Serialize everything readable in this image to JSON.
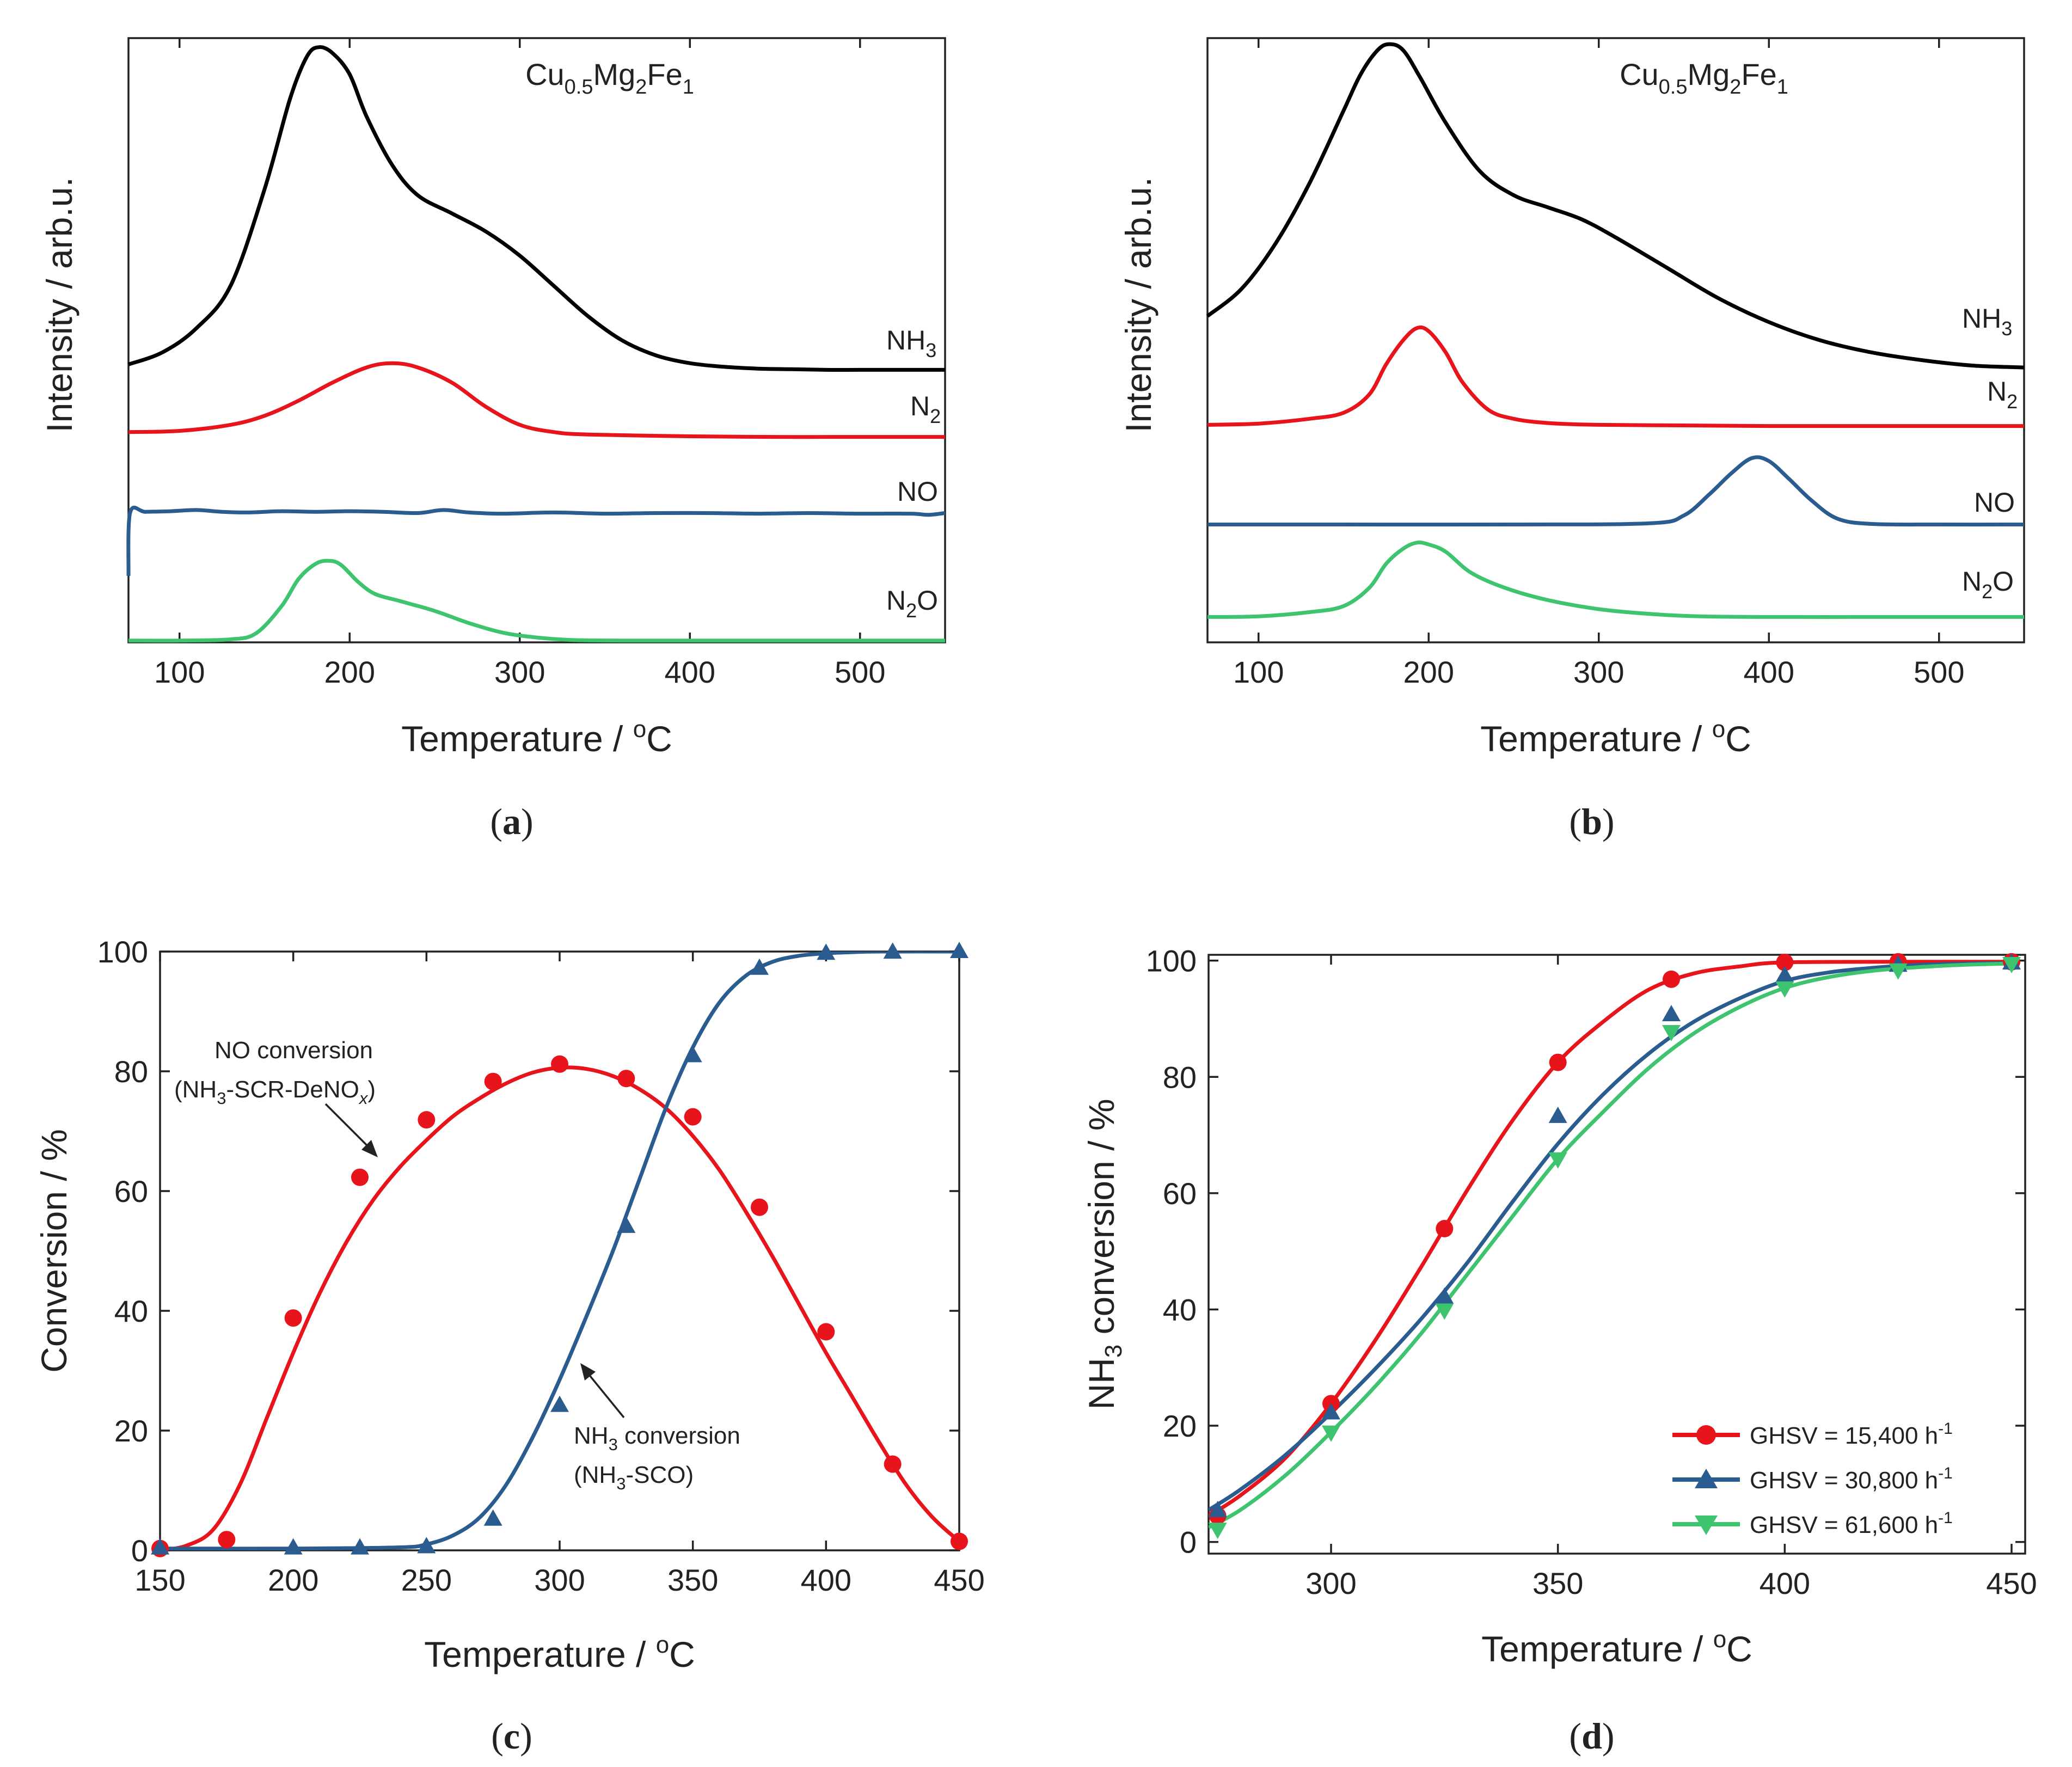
{
  "chart_data": [
    {
      "panel": "a",
      "letter": "a",
      "type": "line",
      "title": "Cu0.5Mg2Fe1",
      "title_parts": {
        "base": "Cu",
        "sub1": "0.5",
        "mid": "Mg",
        "sub2": "2",
        "mid2": "Fe",
        "sub3": "1"
      },
      "xlabel": "Temperature / °C",
      "xlabel_parts": {
        "pre": "Temperature / ",
        "sup": "o",
        "post": "C"
      },
      "ylabel": "Intensity / arb.u.",
      "xlim": [
        70,
        550
      ],
      "ylim": [
        0,
        1
      ],
      "xticks": [
        100,
        200,
        300,
        400,
        500
      ],
      "grid": false,
      "series": [
        {
          "name": "NH3",
          "label_base": "NH",
          "label_sub": "3",
          "color": "#000000",
          "x": [
            70,
            90,
            110,
            130,
            150,
            165,
            175,
            182,
            190,
            200,
            210,
            225,
            240,
            260,
            280,
            300,
            320,
            340,
            360,
            380,
            400,
            420,
            440,
            460,
            480,
            500,
            520,
            550
          ],
          "y": [
            0.46,
            0.48,
            0.52,
            0.59,
            0.75,
            0.9,
            0.97,
            0.985,
            0.975,
            0.94,
            0.87,
            0.79,
            0.74,
            0.71,
            0.68,
            0.64,
            0.59,
            0.54,
            0.5,
            0.475,
            0.462,
            0.456,
            0.453,
            0.452,
            0.451,
            0.451,
            0.451,
            0.451
          ]
        },
        {
          "name": "N2",
          "label_base": "N",
          "label_sub": "2",
          "color": "#e8141b",
          "x": [
            70,
            100,
            130,
            150,
            170,
            190,
            210,
            225,
            240,
            260,
            280,
            300,
            320,
            340,
            400,
            450,
            500,
            550
          ],
          "y": [
            0.348,
            0.35,
            0.36,
            0.375,
            0.4,
            0.43,
            0.455,
            0.462,
            0.455,
            0.43,
            0.39,
            0.36,
            0.348,
            0.344,
            0.341,
            0.34,
            0.34,
            0.34
          ]
        },
        {
          "name": "NO",
          "label_base": "NO",
          "label_sub": "",
          "color": "#2b5c8f",
          "x": [
            70,
            71,
            80,
            95,
            110,
            125,
            140,
            160,
            180,
            200,
            220,
            240,
            255,
            270,
            290,
            320,
            350,
            380,
            410,
            440,
            470,
            500,
            530,
            540,
            550
          ],
          "y": [
            0.11,
            0.215,
            0.216,
            0.217,
            0.219,
            0.216,
            0.215,
            0.217,
            0.216,
            0.217,
            0.216,
            0.214,
            0.219,
            0.215,
            0.213,
            0.215,
            0.213,
            0.214,
            0.214,
            0.213,
            0.214,
            0.213,
            0.213,
            0.211,
            0.214
          ]
        },
        {
          "name": "N2O",
          "label_base": "N",
          "label_sub": "2",
          "label_post": "O",
          "color": "#3ec46e",
          "x": [
            70,
            100,
            130,
            145,
            160,
            170,
            180,
            188,
            195,
            205,
            215,
            230,
            250,
            270,
            290,
            310,
            330,
            360,
            400,
            450,
            500,
            550
          ],
          "y": [
            0.003,
            0.003,
            0.005,
            0.015,
            0.06,
            0.105,
            0.13,
            0.135,
            0.128,
            0.1,
            0.08,
            0.068,
            0.052,
            0.032,
            0.016,
            0.008,
            0.004,
            0.003,
            0.003,
            0.003,
            0.003,
            0.003
          ]
        }
      ]
    },
    {
      "panel": "b",
      "letter": "b",
      "type": "line",
      "title": "Cu0.5Mg2Fe1",
      "title_parts": {
        "base": "Cu",
        "sub1": "0.5",
        "mid": "Mg",
        "sub2": "2",
        "mid2": "Fe",
        "sub3": "1"
      },
      "xlabel": "Temperature / °C",
      "xlabel_parts": {
        "pre": "Temperature / ",
        "sup": "o",
        "post": "C"
      },
      "ylabel": "Intensity / arb.u.",
      "xlim": [
        70,
        550
      ],
      "ylim": [
        0,
        1
      ],
      "xticks": [
        100,
        200,
        300,
        400,
        500
      ],
      "grid": false,
      "series": [
        {
          "name": "NH3",
          "label_base": "NH",
          "label_sub": "3",
          "color": "#000000",
          "x": [
            70,
            90,
            110,
            130,
            150,
            160,
            170,
            177,
            185,
            195,
            210,
            230,
            250,
            270,
            290,
            310,
            340,
            370,
            400,
            430,
            460,
            490,
            520,
            550
          ],
          "y": [
            0.54,
            0.585,
            0.66,
            0.76,
            0.88,
            0.94,
            0.98,
            0.99,
            0.98,
            0.935,
            0.86,
            0.78,
            0.74,
            0.72,
            0.7,
            0.67,
            0.62,
            0.57,
            0.53,
            0.5,
            0.48,
            0.467,
            0.458,
            0.455
          ]
        },
        {
          "name": "N2",
          "label_base": "N",
          "label_sub": "2",
          "color": "#e8141b",
          "x": [
            70,
            100,
            130,
            150,
            165,
            175,
            185,
            193,
            200,
            210,
            220,
            235,
            250,
            270,
            300,
            350,
            400,
            450,
            500,
            550
          ],
          "y": [
            0.36,
            0.362,
            0.37,
            0.38,
            0.41,
            0.46,
            0.5,
            0.52,
            0.515,
            0.48,
            0.43,
            0.385,
            0.37,
            0.363,
            0.36,
            0.359,
            0.358,
            0.358,
            0.358,
            0.358
          ]
        },
        {
          "name": "NO",
          "label_base": "NO",
          "label_sub": "",
          "color": "#2b5c8f",
          "x": [
            70,
            150,
            250,
            330,
            350,
            365,
            378,
            390,
            400,
            412,
            425,
            440,
            460,
            500,
            550
          ],
          "y": [
            0.195,
            0.195,
            0.195,
            0.197,
            0.21,
            0.245,
            0.28,
            0.305,
            0.3,
            0.27,
            0.235,
            0.205,
            0.196,
            0.195,
            0.195
          ]
        },
        {
          "name": "N2O",
          "label_base": "N",
          "label_sub": "2",
          "label_post": "O",
          "color": "#3ec46e",
          "x": [
            70,
            100,
            130,
            150,
            165,
            175,
            185,
            193,
            200,
            210,
            225,
            245,
            270,
            300,
            330,
            360,
            400,
            450,
            500,
            550
          ],
          "y": [
            0.042,
            0.043,
            0.05,
            0.06,
            0.09,
            0.13,
            0.155,
            0.165,
            0.162,
            0.15,
            0.115,
            0.09,
            0.07,
            0.055,
            0.047,
            0.043,
            0.042,
            0.042,
            0.042,
            0.042
          ]
        }
      ]
    },
    {
      "panel": "c",
      "letter": "c",
      "type": "scatter",
      "xlabel": "Temperature / °C",
      "xlabel_parts": {
        "pre": "Temperature / ",
        "sup": "o",
        "post": "C"
      },
      "ylabel": "Conversion / %",
      "xlim": [
        150,
        450
      ],
      "ylim": [
        0,
        100
      ],
      "xticks": [
        150,
        200,
        250,
        300,
        350,
        400,
        450
      ],
      "yticks": [
        0,
        20,
        40,
        60,
        80,
        100
      ],
      "grid": false,
      "series": [
        {
          "name": "NO conversion (NH3-SCR-DeNOx)",
          "marker": "circle",
          "color": "#e8141b",
          "x": [
            150,
            175,
            200,
            225,
            250,
            275,
            300,
            325,
            350,
            375,
            400,
            425,
            450
          ],
          "y": [
            0.3,
            1.8,
            38.8,
            62.3,
            71.9,
            78.3,
            81.2,
            78.8,
            72.4,
            57.3,
            36.5,
            14.4,
            1.5
          ],
          "fit_x": [
            150,
            160,
            170,
            180,
            190,
            200,
            210,
            220,
            230,
            240,
            250,
            260,
            270,
            280,
            290,
            300,
            310,
            320,
            330,
            340,
            350,
            360,
            370,
            380,
            390,
            400,
            410,
            420,
            430,
            440,
            450
          ],
          "fit_y": [
            0,
            0.8,
            3.5,
            11,
            22,
            33,
            43,
            51.5,
            58.5,
            64,
            68.5,
            72.5,
            75.5,
            78,
            79.8,
            80.6,
            80.4,
            79.2,
            77,
            73.8,
            69.2,
            63.5,
            56.5,
            49,
            41,
            33,
            25.5,
            18,
            11,
            5.5,
            1.5
          ]
        },
        {
          "name": "NH3 conversion (NH3-SCO)",
          "marker": "triangle",
          "color": "#2b5c8f",
          "x": [
            150,
            200,
            225,
            250,
            275,
            300,
            325,
            350,
            375,
            400,
            425,
            450
          ],
          "y": [
            0.4,
            0.4,
            0.4,
            0.6,
            5.2,
            24.2,
            54.1,
            82.6,
            97.2,
            99.7,
            99.9,
            100
          ],
          "fit_x": [
            150,
            200,
            240,
            250,
            260,
            270,
            280,
            290,
            300,
            310,
            320,
            330,
            340,
            350,
            360,
            370,
            380,
            390,
            400,
            410,
            420,
            450
          ],
          "fit_y": [
            0.3,
            0.3,
            0.5,
            1,
            2.5,
            5.5,
            11,
            19,
            28.5,
            39,
            50,
            62,
            74,
            84,
            91.5,
            96,
            98.3,
            99.3,
            99.7,
            99.9,
            100,
            100
          ]
        }
      ],
      "annotations": [
        {
          "id": "no-conversion",
          "line1": "NO conversion",
          "line2_pre": "(NH",
          "line2_sub": "3",
          "line2_mid": "-SCR-DeNO",
          "line2_italic_sub": "x",
          "line2_post": ")"
        },
        {
          "id": "nh3-conversion",
          "line1_pre": "NH",
          "line1_sub": "3",
          "line1_post": " conversion",
          "line2": "(NH",
          "line2_sub": "3",
          "line2_post": "-SCO)"
        }
      ]
    },
    {
      "panel": "d",
      "letter": "d",
      "type": "line",
      "xlabel": "Temperature / °C",
      "xlabel_parts": {
        "pre": "Temperature / ",
        "sup": "o",
        "post": "C"
      },
      "ylabel": "NH3 conversion / %",
      "ylabel_parts": {
        "pre": "NH",
        "sub": "3",
        "post": " conversion / %"
      },
      "xlim": [
        273,
        453
      ],
      "ylim": [
        -2,
        101
      ],
      "xticks": [
        300,
        350,
        400,
        450
      ],
      "yticks": [
        0,
        20,
        40,
        60,
        80,
        100
      ],
      "grid": false,
      "legend_position": "bottom-right",
      "series": [
        {
          "name": "GHSV = 15,400 h-1",
          "legend_pre": "GHSV = 15,400 h",
          "legend_sup": "-1",
          "marker": "circle",
          "color": "#e8141b",
          "x": [
            275,
            300,
            325,
            350,
            375,
            400,
            425,
            450
          ],
          "y": [
            4.5,
            23.8,
            53.9,
            82.5,
            96.8,
            99.7,
            99.8,
            99.8
          ],
          "fit_x": [
            273,
            280,
            290,
            300,
            310,
            320,
            330,
            340,
            350,
            360,
            370,
            380,
            390,
            400,
            425,
            450
          ],
          "fit_y": [
            4.5,
            8,
            14.5,
            23.8,
            35,
            47.5,
            60.5,
            72.5,
            82.5,
            89.5,
            95,
            97.8,
            99,
            99.7,
            99.8,
            99.8
          ]
        },
        {
          "name": "GHSV = 30,800 h-1",
          "legend_pre": "GHSV = 30,800 h",
          "legend_sup": "-1",
          "marker": "triangle",
          "color": "#2b5c8f",
          "x": [
            275,
            300,
            325,
            350,
            375,
            400,
            425,
            450
          ],
          "y": [
            5.4,
            22.2,
            42.1,
            73.2,
            90.7,
            97.4,
            99.2,
            99.6
          ],
          "fit_x": [
            273,
            280,
            290,
            300,
            310,
            320,
            330,
            340,
            350,
            360,
            370,
            380,
            390,
            400,
            410,
            420,
            430,
            440,
            450
          ],
          "fit_y": [
            5.5,
            9,
            15,
            22.2,
            30,
            38.5,
            48,
            58.5,
            68.5,
            77,
            84,
            89.5,
            93.5,
            96.5,
            98,
            98.8,
            99.3,
            99.5,
            99.6
          ]
        },
        {
          "name": "GHSV = 61,600 h-1",
          "legend_pre": "GHSV = 61,600 h",
          "legend_sup": "-1",
          "marker": "triangle-down",
          "color": "#3ec46e",
          "x": [
            275,
            300,
            325,
            350,
            375,
            400,
            425,
            450
          ],
          "y": [
            2.2,
            18.9,
            39.9,
            65.9,
            87.8,
            95.3,
            98.4,
            99.5
          ],
          "fit_x": [
            273,
            280,
            290,
            300,
            310,
            320,
            330,
            340,
            350,
            360,
            370,
            380,
            390,
            400,
            410,
            420,
            430,
            440,
            450
          ],
          "fit_y": [
            2.5,
            5.5,
            11.5,
            18.9,
            27,
            36,
            46,
            56,
            65.9,
            74,
            81.5,
            87.5,
            92,
            95.3,
            97.2,
            98.3,
            98.9,
            99.3,
            99.5
          ]
        }
      ]
    }
  ]
}
